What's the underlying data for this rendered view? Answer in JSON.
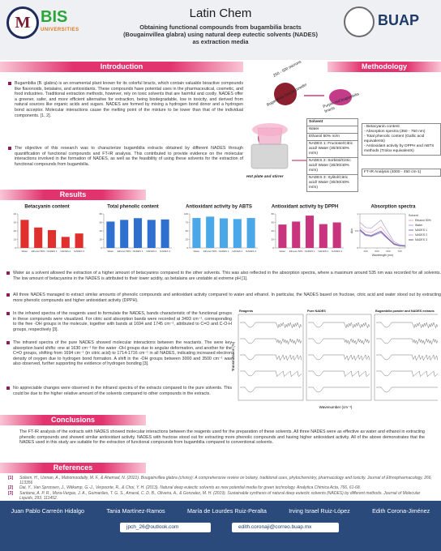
{
  "header": {
    "logo_left_1": "M",
    "logo_left_2_main": "BIS",
    "logo_left_2_sub": "UNIVERSITIES",
    "brand": "Latin Chem",
    "title": "Obtaining functional compounds from bugambilia bracts (Bougainvillea glabra) using natural deep eutectic solvents (NADES) as extraction media",
    "logo_right": "BUAP"
  },
  "introduction": {
    "heading": "Introduction",
    "paragraphs": [
      "Bugambilia (B. glabra) is an ornamental plant known for its colorful bracts, which contain valuable bioactive compounds like flavonoids, betalains, and antioxidants. These compounds have potential uses in the pharmaceutical, cosmetic, and food industries. Traditional extraction methods, however, rely on toxic solvents that are harmful and costly. NADES offer a greener, safer, and more efficient alternative for extraction, being biodegradable, low in toxicity, and derived from natural sources like organic acids and sugars. NADES are formed by mixing a hydrogen bond donor and a hydrogen bond acceptor. Molecular interactions cause the melting point of the mixture to be lower than that of the individual components. [1, 2].",
      "The objective of this research was to characterize bugambilia extracts obtained by different NADES through quantification of functional compounds and FT-IR analysis. This contributed to provide evidence on the molecular interactions involved in the formation of NADES, as well as the feasibility of using these solvents for the extraction of functional compounds from bugambilia."
    ]
  },
  "methodology": {
    "heading": "Methodology",
    "size_label": "250 - 500 microns",
    "powder_label": "Bugambilia bracts powder",
    "bracts_label": "Purple-red bugambilia bracts",
    "equipment_label": "Hot plate and stirrer",
    "solvent_header": "Solvent",
    "solvents": [
      "Water",
      "Ethanol 50% m/m",
      "NADES 1: Fructose/Citric acid/ Water (30/30/40% m/m)",
      "NADES 2: Sorbitol/Citric acid/ Water (30/30/40% m/m)",
      "NADES 3: Xylitol/Citric acid/ Water (30/30/40% m/m)"
    ],
    "analyses": [
      "- Betacyanin content",
      "- Absorption spectra (350 - 750 nm)",
      "- Total phenolic content (Gallic acid equivalents)",
      "- Antioxidant activity by DPPH and ABTS methods (Trolox equivalents)"
    ],
    "ftir": "FT-IR Analysis (4000 - 450 cm-1)"
  },
  "results": {
    "heading": "Results",
    "charts": [
      {
        "type": "bar",
        "title": "Betacyanin content",
        "color": "#e0302e",
        "categories": [
          "Water",
          "Ethanol 50%",
          "NADES 1",
          "NADES 2",
          "NADES 3"
        ],
        "values": [
          33,
          24,
          21,
          13,
          17
        ],
        "ylim": [
          0,
          40
        ],
        "yticks": [
          0,
          10,
          20,
          30,
          40
        ]
      },
      {
        "type": "bar",
        "title": "Total phenolic content",
        "color": "#2f6fd0",
        "categories": [
          "Water",
          "Ethanol 50%",
          "NADES 1",
          "NADES 2",
          "NADES 3"
        ],
        "values": [
          62,
          66,
          70,
          66,
          67
        ],
        "ylim": [
          0,
          80
        ],
        "yticks": [
          0,
          20,
          40,
          60,
          80
        ]
      },
      {
        "type": "bar",
        "title": "Antioxidant activity by ABTS",
        "color": "#4aa8e8",
        "categories": [
          "Water",
          "Ethanol 50%",
          "NADES 1",
          "NADES 2",
          "NADES 3"
        ],
        "values": [
          88,
          92,
          87,
          85,
          88
        ],
        "ylim": [
          0,
          100
        ],
        "yticks": [
          0,
          25,
          50,
          75,
          100
        ]
      },
      {
        "type": "bar",
        "title": "Antioxidant activity by DPPH",
        "color": "#c8347e",
        "categories": [
          "Water",
          "Ethanol 50%",
          "NADES 1",
          "NADES 2",
          "NADES 3"
        ],
        "values": [
          55,
          62,
          76,
          56,
          60
        ],
        "ylim": [
          0,
          80
        ],
        "yticks": [
          0,
          20,
          40,
          60,
          80
        ]
      },
      {
        "type": "line",
        "title": "Absorption spectra",
        "legend_title": "Solvent",
        "xlabel": "Wavelength (nm)",
        "ylabel": "Abs",
        "x": [
          350,
          400,
          450,
          500,
          535,
          600,
          650,
          700,
          750
        ],
        "xlim": [
          350,
          750
        ],
        "xticks": [
          400,
          500,
          600,
          700
        ],
        "ylim": [
          0,
          1
        ],
        "yticks": [
          0,
          0.5,
          1
        ],
        "series": [
          {
            "name": "Ethanol 50%",
            "color": "#e7a0b8",
            "values": [
              0.62,
              0.48,
              0.45,
              0.55,
              0.62,
              0.35,
              0.14,
              0.08,
              0.06
            ]
          },
          {
            "name": "Water",
            "color": "#a6a6d8",
            "values": [
              0.75,
              0.6,
              0.58,
              0.72,
              0.82,
              0.45,
              0.18,
              0.1,
              0.08
            ]
          },
          {
            "name": "NADES 1",
            "color": "#7b6fc4",
            "values": [
              0.55,
              0.4,
              0.37,
              0.45,
              0.5,
              0.28,
              0.12,
              0.07,
              0.05
            ]
          },
          {
            "name": "NADES 2",
            "color": "#c9a2d8",
            "values": [
              0.5,
              0.36,
              0.33,
              0.4,
              0.44,
              0.25,
              0.1,
              0.06,
              0.05
            ]
          },
          {
            "name": "NADES 3",
            "color": "#5d5d9e",
            "values": [
              0.52,
              0.38,
              0.35,
              0.42,
              0.47,
              0.26,
              0.11,
              0.06,
              0.05
            ]
          }
        ]
      }
    ],
    "bullets": [
      "Water as a solvent allowed the extraction of a higher amount of betacyanins compared to the other solvents. This was also reflected in the absorption spectra, where a maximum around 535 nm was recorded for all solvents. The low amount of betacyanins in the NADES is attributed to their lower acidity, as betalains are unstable at extreme pH [1].",
      "All three NADES managed to extract similar amounts of phenolic compounds and antioxidant activity compared to water and ethanol. In particular, the NADES based on fructose, citric acid and water stood out by extracting more phenolic compounds and higher antioxidant activity (DPPH).",
      "In the infrared spectra of the reagents used to formulate the NADES, bands characteristic of the functional groups in these compounds were visualized. For citric acid absorption bands were recorded at 3493 cm⁻¹, corresponding to the free -OH groups in the molecule, together with bands at 1694 and 1745 cm⁻¹, attributed to C=O and C-O-H groups, respectively [3].",
      "The infrared spectra of the pure NADES showed molecular interactions between the reactants. The were key absorption band shifts: one at 1630 cm⁻¹ for the water -OH groups due to angular deformation, and another for the C=O groups, shifting from 1694 cm⁻¹ (in citric acid) to 1714-1716 cm⁻¹ in all NADES, indicating increased electron density of oxygen due to hydrogen bond formation. A shift in the -OH groups between 3000 and 3500 cm⁻¹ was also observed, further supporting the evidence of hydrogen bonding [3].",
      "No appreciable changes were observed in the infrared spectra of the extracts compared to the pure solvents. This could be due to the higher relative amount of the solvents compared to other compounds in the extracts."
    ],
    "ftir_figure": {
      "panels": [
        "Reagents",
        "Pure NADES",
        "Bugambilia powder and NADES extracts"
      ],
      "xlabel": "Wavenumber (cm⁻¹)",
      "ylabel": "Transmittance (%)"
    }
  },
  "conclusions": {
    "heading": "Conclusions",
    "text": "The FT-IR analysis of the extracts with NADES showed molecular interactions between the reagents used for the preparation of these solvents. All three NADES were as effective as water and ethanol in extracting phenolic compounds and showed similar antioxidant activity. NADES with fructose stood out for extracting more phenolic compounds and having higher antioxidant activity. All of the above demonstrates that the NADES used in this study are suitable for the extraction of functional compounds from bugambilia compared to conventional solvents."
  },
  "references": {
    "heading": "References",
    "items": [
      {
        "num": "[1]",
        "text": "Soliem, H., Usman, A., Mahomoodally, M. F., & Ahemad, N. (2021). Bougainvillea glabra (choisy): A comprehensive review on botany, traditional uses, phytochemistry, pharmacology and toxicity. Journal of Ethnopharmacology, 266, 113356"
      },
      {
        "num": "[2]",
        "text": "Dai, Y., Van Spronsen, J., Witkamp, G.-J., Verpoorte, R., & Choi, Y. H. (2013). Natural deep eutectic solvents as new potential media for green technology. Analytica Chimica Acta, 766, 61-68."
      },
      {
        "num": "[3]",
        "text": "Santana, A. P. R., Mora-Vargas, J. A., Guimarães, T. G. S., Amaral, C. D. B., Oliveira, A., & Gonzalez, M. H. (2019). Sustainable synthesis of natural deep eutectic solvents (NADES) by different methods. Journal of Molecular Liquids, 293, 111452."
      }
    ]
  },
  "footer": {
    "authors": [
      "Juan Pablo Carreón Hidalgo",
      "Tania Martínez-Ramos",
      "María de Lourdes Ruiz-Peralta",
      "Irving Israel Ruiz-López",
      "Edith Corona-Jiménez"
    ],
    "emails": [
      "jpch_26@outlook.com",
      "edith.coronaji@correo.buap.mx"
    ]
  }
}
